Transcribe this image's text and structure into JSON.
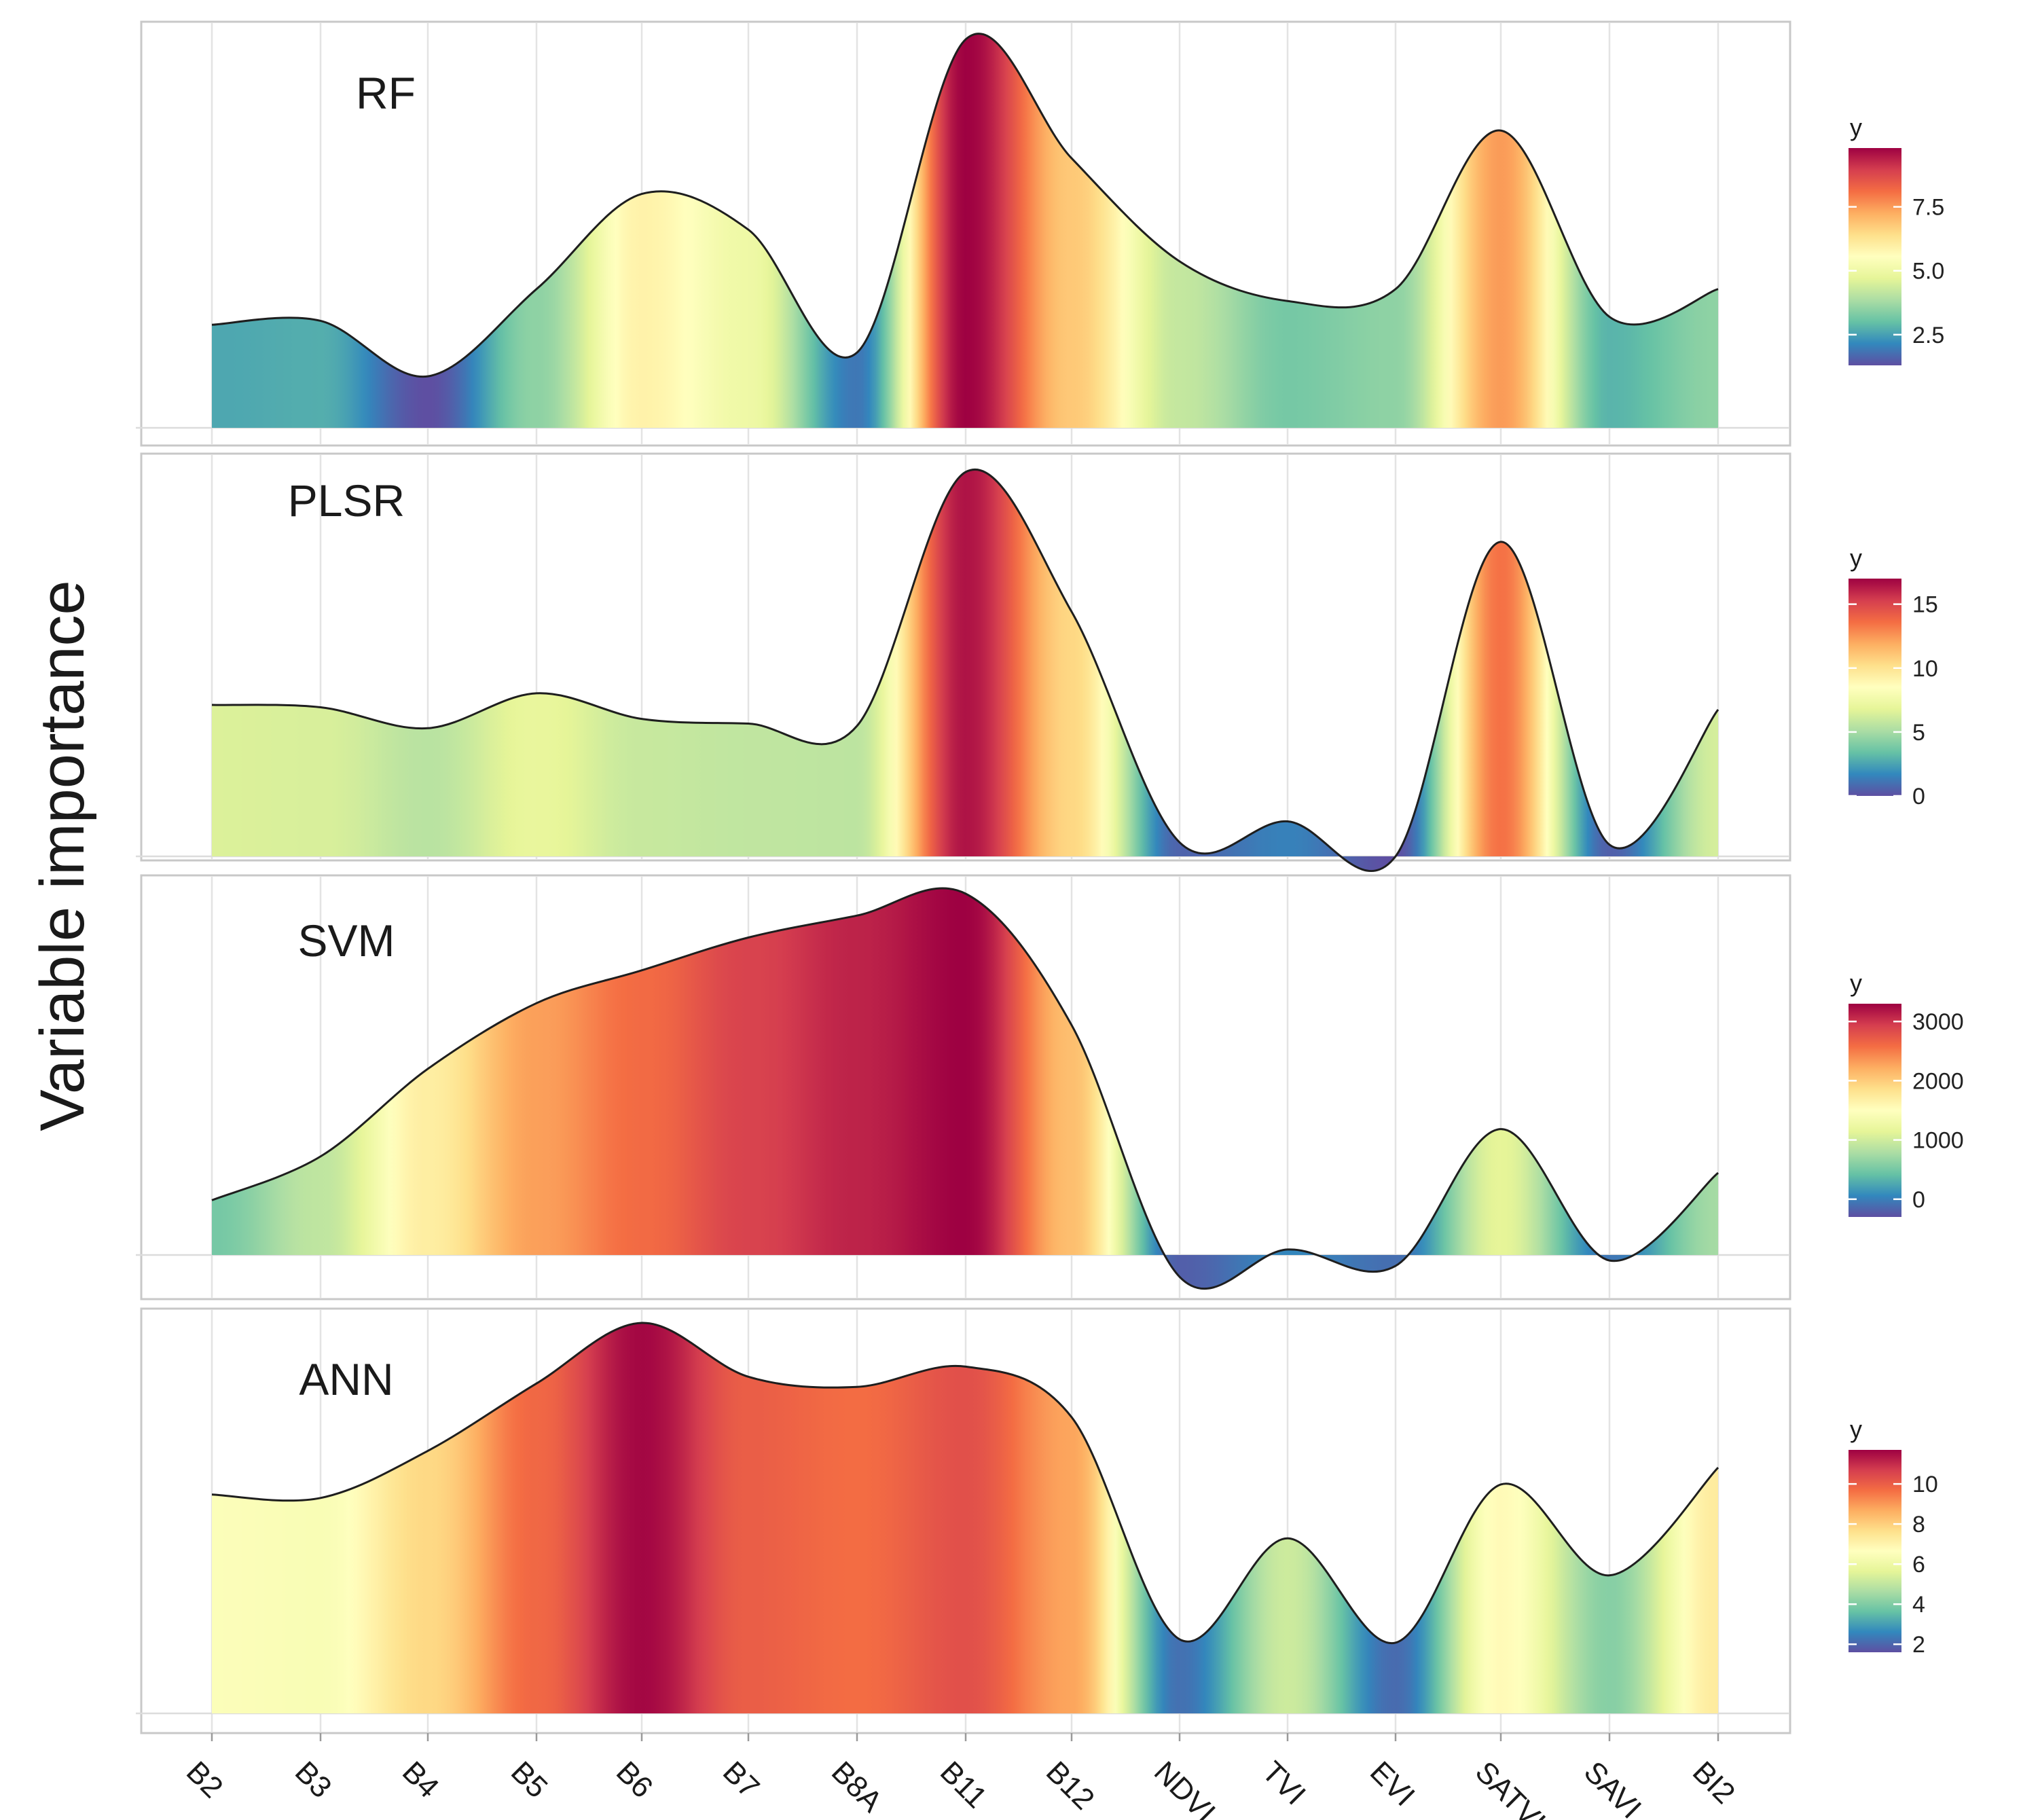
{
  "chart_data": {
    "type": "area",
    "ylabel": "Variable importance",
    "categories": [
      "B2",
      "B3",
      "B4",
      "B5",
      "B6",
      "B7",
      "B8A",
      "B11",
      "B12",
      "NDVI",
      "TVI",
      "EVI",
      "SATVI",
      "SAVI",
      "BI2"
    ],
    "panels": [
      {
        "name": "RF",
        "values": [
          2.6,
          2.7,
          1.3,
          3.5,
          5.9,
          5.0,
          1.9,
          9.8,
          6.8,
          4.2,
          3.2,
          3.5,
          7.5,
          2.8,
          3.5
        ],
        "legend": {
          "title": "y",
          "ticks": [
            2.5,
            5.0,
            7.5
          ],
          "tick_labels": [
            "2.5",
            "5.0",
            "7.5"
          ],
          "range": [
            1.3,
            9.8
          ]
        }
      },
      {
        "name": "PLSR",
        "values": [
          6.5,
          6.4,
          5.5,
          7.0,
          5.9,
          5.7,
          5.6,
          16.5,
          10.5,
          0.6,
          1.5,
          0.0,
          13.5,
          0.5,
          6.3
        ],
        "legend": {
          "title": "y",
          "ticks": [
            0,
            5,
            10,
            15
          ],
          "tick_labels": [
            "0",
            "5",
            "10",
            "15"
          ],
          "range": [
            0,
            17
          ]
        }
      },
      {
        "name": "SVM",
        "values": [
          500,
          900,
          1700,
          2300,
          2600,
          2900,
          3100,
          3300,
          2100,
          -200,
          50,
          -100,
          1150,
          -50,
          750
        ],
        "legend": {
          "title": "y",
          "ticks": [
            0,
            1000,
            2000,
            3000
          ],
          "tick_labels": [
            "0",
            "1000",
            "2000",
            "3000"
          ],
          "range": [
            -300,
            3300
          ]
        }
      },
      {
        "name": "ANN",
        "values": [
          6.5,
          6.4,
          7.8,
          9.8,
          11.6,
          10.0,
          9.7,
          10.3,
          8.8,
          2.2,
          5.2,
          2.1,
          6.8,
          4.1,
          7.3
        ],
        "legend": {
          "title": "y",
          "ticks": [
            2,
            4,
            6,
            8,
            10
          ],
          "tick_labels": [
            "2",
            "4",
            "6",
            "8",
            "10"
          ],
          "range": [
            1.6,
            11.7
          ]
        }
      }
    ],
    "palette": [
      "#5e4fa2",
      "#3288bd",
      "#66c2a5",
      "#abdda4",
      "#e6f598",
      "#ffffbf",
      "#fee08b",
      "#fdae61",
      "#f46d43",
      "#d53e4f",
      "#9e0142"
    ],
    "grid": true
  }
}
